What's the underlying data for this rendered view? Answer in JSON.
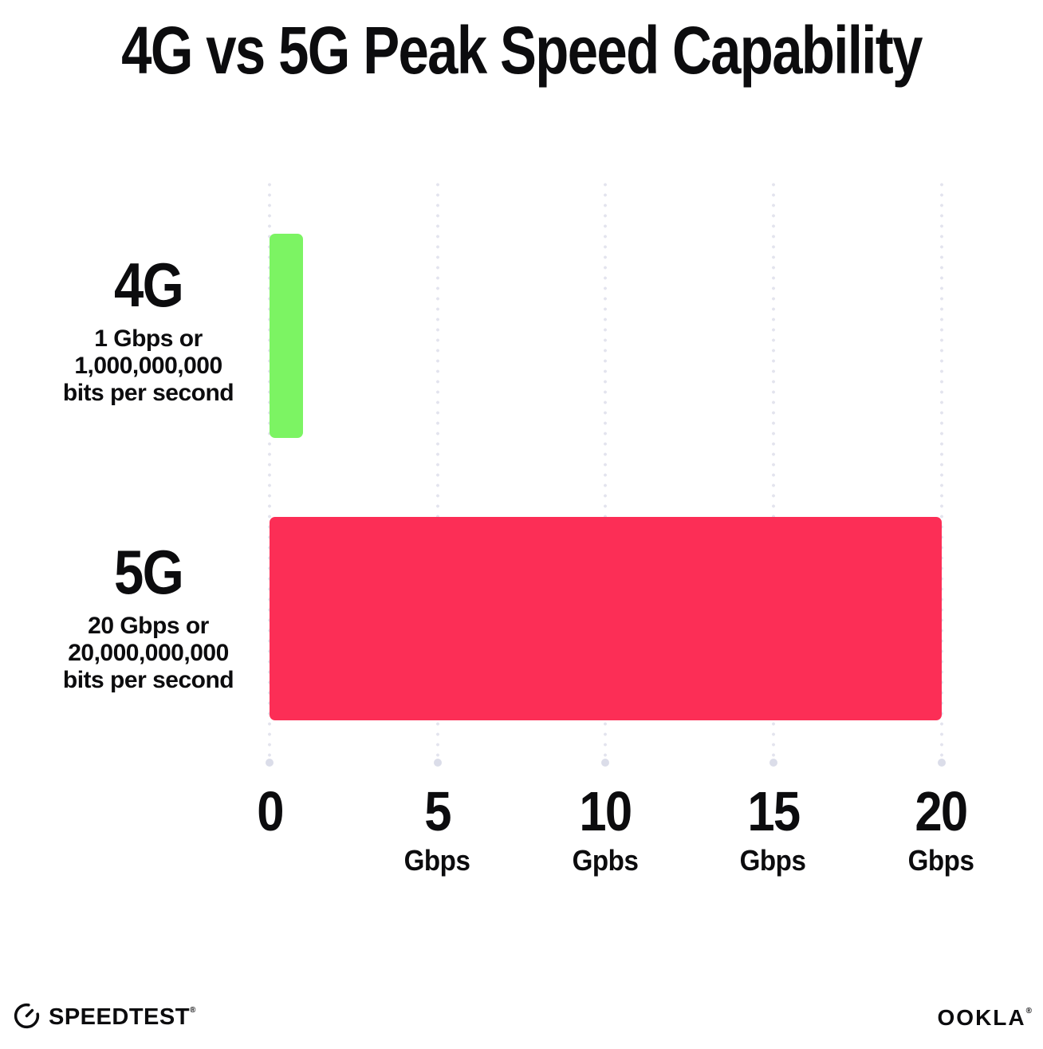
{
  "title": "4G vs 5G Peak Speed Capability",
  "chart_data": {
    "type": "bar",
    "orientation": "horizontal",
    "title": "4G vs 5G Peak Speed Capability",
    "categories": [
      "4G",
      "5G"
    ],
    "values": [
      1,
      20
    ],
    "value_unit": "Gbps",
    "bar_colors": [
      "#7CF463",
      "#FC2E56"
    ],
    "category_sublabels": [
      [
        "1 Gbps or",
        "1,000,000,000",
        "bits per second"
      ],
      [
        "20 Gbps or",
        "20,000,000,000",
        "bits per second"
      ]
    ],
    "xlim": [
      0,
      20
    ],
    "x_ticks": [
      {
        "value": "0",
        "unit": ""
      },
      {
        "value": "5",
        "unit": "Gbps"
      },
      {
        "value": "10",
        "unit": "Gpbs"
      },
      {
        "value": "15",
        "unit": "Gbps"
      },
      {
        "value": "20",
        "unit": "Gbps"
      }
    ],
    "grid": {
      "style": "vertical-dotted",
      "color": "#E3E4EE",
      "end_dot_color": "#DBDDE9"
    },
    "legend": "none",
    "text_color": "#0C0C0E"
  },
  "footer": {
    "speedtest_label": "SPEEDTEST",
    "speedtest_trademark": "®",
    "ookla_label": "OOKLA",
    "ookla_trademark": "®"
  }
}
